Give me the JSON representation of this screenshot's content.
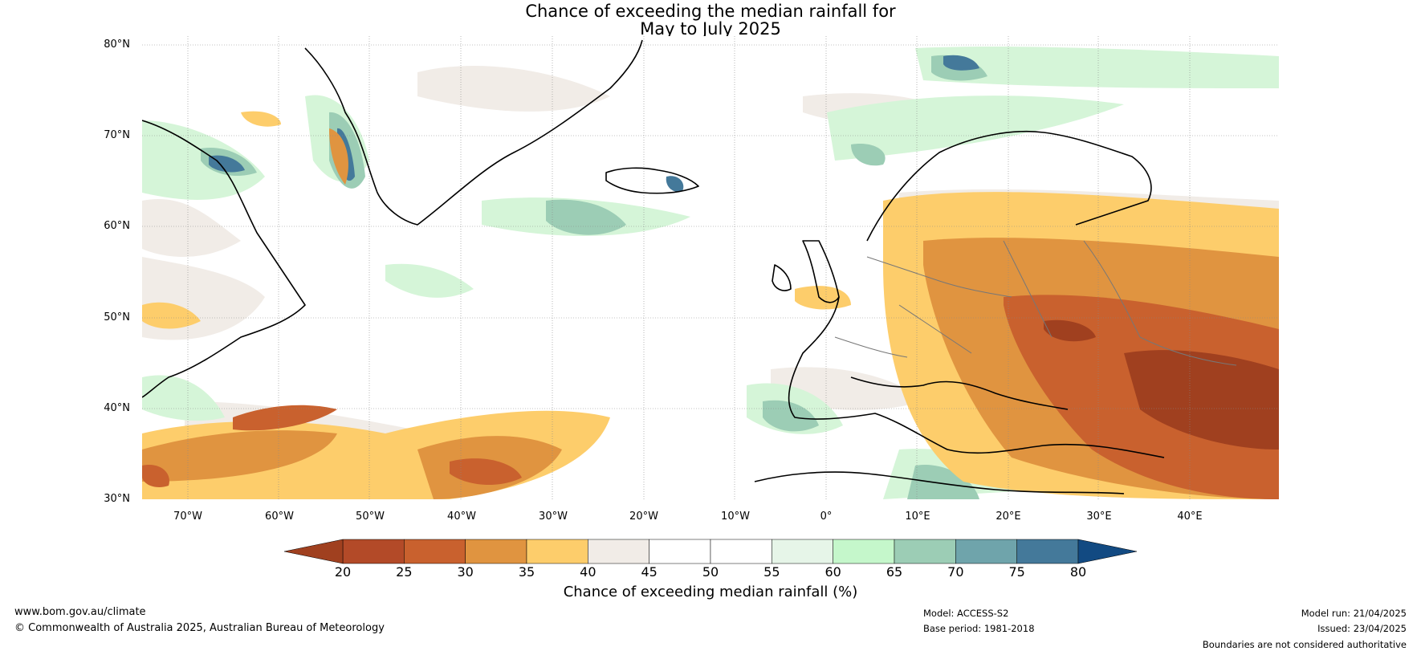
{
  "title_line1": "Chance of exceeding the median rainfall for",
  "title_line2": "May to July 2025",
  "lat_labels": [
    "80°N",
    "70°N",
    "60°N",
    "50°N",
    "40°N",
    "30°N"
  ],
  "lon_labels": [
    "70°W",
    "60°W",
    "50°W",
    "40°W",
    "30°W",
    "20°W",
    "10°W",
    "0°",
    "10°E",
    "20°E",
    "30°E",
    "40°E"
  ],
  "colorbar": {
    "ticks": [
      "20",
      "25",
      "30",
      "35",
      "40",
      "45",
      "50",
      "55",
      "60",
      "65",
      "70",
      "75",
      "80"
    ],
    "colors": [
      "#a0401f",
      "#b34a28",
      "#c9612e",
      "#e09440",
      "#fdcd6b",
      "#f1ece7",
      "#ffffff",
      "#ffffff",
      "#e6f5e8",
      "#c5f7cb",
      "#9ccdb5",
      "#6fa4ab",
      "#44799a"
    ],
    "low_extend_color": "#a0401f",
    "high_extend_color": "#124a82",
    "label": "Chance of exceeding median rainfall (%)"
  },
  "footer": {
    "website": "www.bom.gov.au/climate",
    "copyright": "© Commonwealth of Australia 2025, Australian Bureau of Meteorology",
    "model": "Model: ACCESS-S2",
    "base_period": "Base period: 1981-2018",
    "model_run": "Model run: 21/04/2025",
    "issued": "Issued: 23/04/2025",
    "disclaimer": "Boundaries are not considered authoritative"
  }
}
